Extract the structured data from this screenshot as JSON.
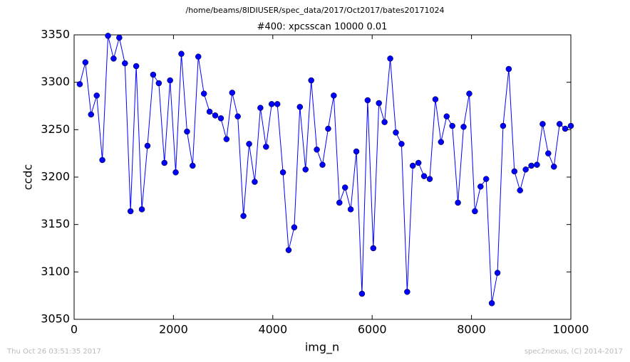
{
  "chart_data": {
    "type": "line",
    "suptitle": "/home/beams/8IDIUSER/spec_data/2017/Oct2017/bates20171024",
    "title": "#400: xpcsscan 10000 0.01",
    "xlabel": "img_n",
    "ylabel": "ccdc",
    "footer_left": "Thu Oct 26 03:51:35 2017",
    "footer_right": "spec2nexus, (C) 2014-2017",
    "xlim": [
      0,
      10000
    ],
    "xticks": [
      0,
      2000,
      4000,
      6000,
      8000,
      10000
    ],
    "ylim": [
      3050,
      3350
    ],
    "yticks": [
      3050,
      3100,
      3150,
      3200,
      3250,
      3300,
      3350
    ],
    "grid": false,
    "x": [
      114,
      227,
      341,
      455,
      568,
      682,
      795,
      909,
      1023,
      1136,
      1250,
      1364,
      1477,
      1591,
      1705,
      1818,
      1932,
      2045,
      2159,
      2273,
      2386,
      2500,
      2614,
      2727,
      2841,
      2955,
      3068,
      3182,
      3295,
      3409,
      3523,
      3636,
      3750,
      3864,
      3977,
      4091,
      4205,
      4318,
      4432,
      4545,
      4659,
      4773,
      4886,
      5000,
      5114,
      5227,
      5341,
      5455,
      5568,
      5682,
      5795,
      5909,
      6023,
      6136,
      6250,
      6364,
      6477,
      6591,
      6705,
      6818,
      6932,
      7045,
      7159,
      7273,
      7386,
      7500,
      7614,
      7727,
      7841,
      7955,
      8068,
      8182,
      8295,
      8409,
      8523,
      8636,
      8750,
      8864,
      8977,
      9091,
      9205,
      9318,
      9432,
      9545,
      9659,
      9773,
      9886,
      10000
    ],
    "series": [
      {
        "name": "ccdc",
        "color": "#0000ff",
        "values": [
          3298,
          3321,
          3266,
          3286,
          3218,
          3349,
          3325,
          3347,
          3320,
          3164,
          3317,
          3166,
          3233,
          3308,
          3299,
          3215,
          3302,
          3205,
          3330,
          3248,
          3212,
          3327,
          3288,
          3269,
          3265,
          3262,
          3240,
          3289,
          3264,
          3159,
          3235,
          3195,
          3273,
          3232,
          3277,
          3277,
          3205,
          3123,
          3147,
          3274,
          3208,
          3302,
          3229,
          3213,
          3251,
          3286,
          3173,
          3189,
          3166,
          3227,
          3077,
          3281,
          3125,
          3278,
          3258,
          3325,
          3247,
          3235,
          3079,
          3212,
          3215,
          3201,
          3198,
          3282,
          3237,
          3264,
          3254,
          3173,
          3253,
          3288,
          3164,
          3190,
          3198,
          3067,
          3099,
          3254,
          3314,
          3206,
          3186,
          3208,
          3212,
          3213,
          3256,
          3225,
          3211,
          3256,
          3251,
          3254
        ]
      }
    ]
  }
}
